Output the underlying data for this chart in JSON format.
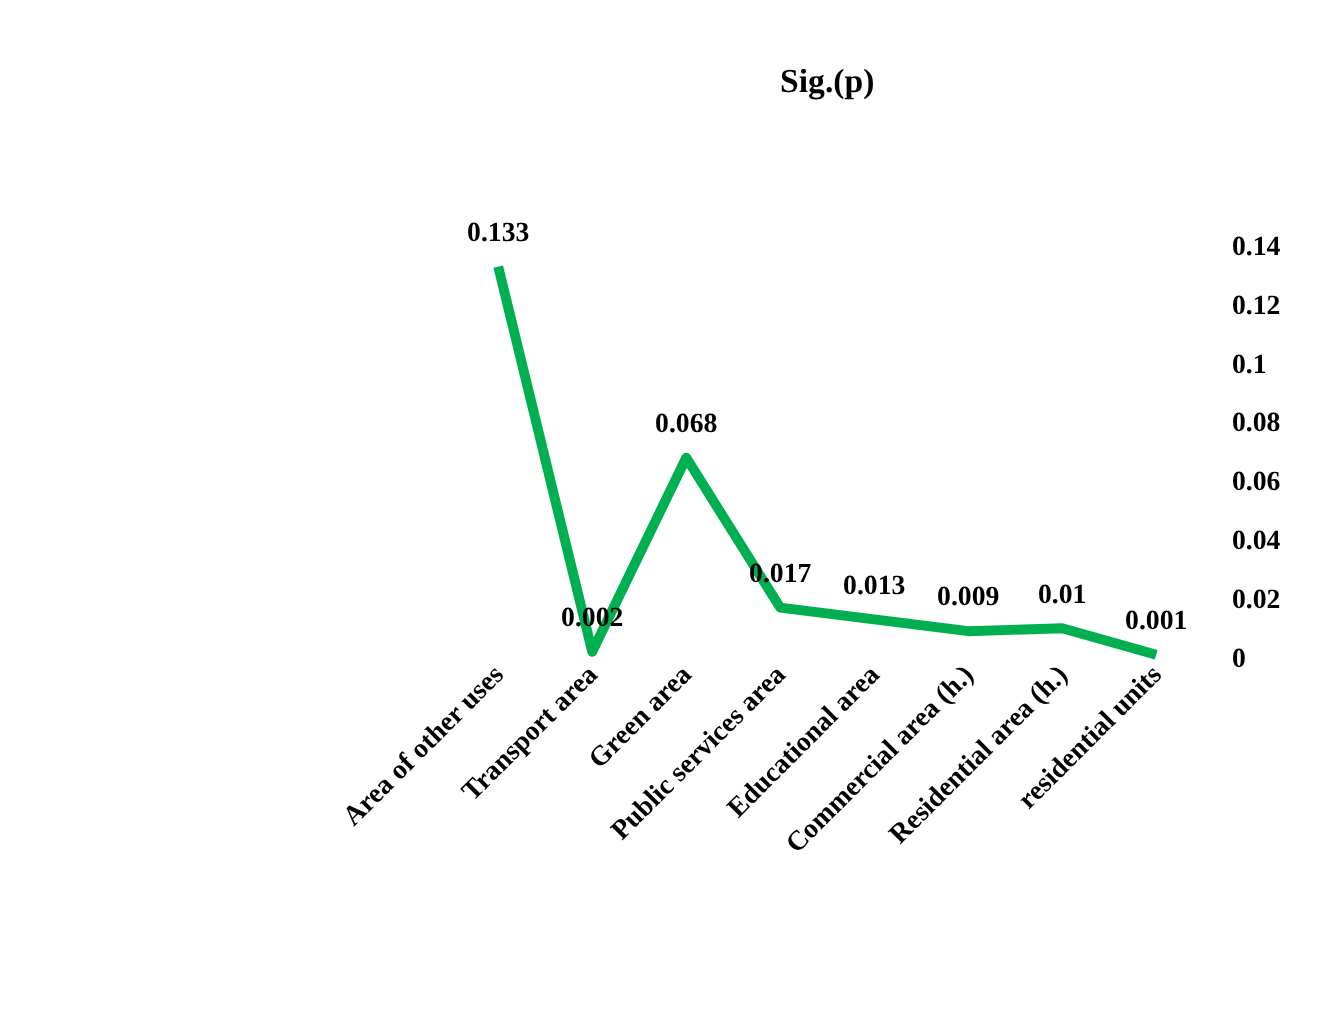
{
  "chart_data": {
    "type": "line",
    "title": "Sig.(p)",
    "categories": [
      "Area of other uses",
      "Transport area",
      "Green area",
      "Public services area",
      "Educational area",
      "Commercial area (h.)",
      "Residential area (h.)",
      "residential units"
    ],
    "series": [
      {
        "color": "#00b050",
        "values": [
          0.133,
          0.002,
          0.068,
          0.017,
          0.013,
          0.009,
          0.01,
          0.001
        ]
      }
    ],
    "ylim": [
      0,
      0.14
    ],
    "yticks": [
      0,
      0.02,
      0.04,
      0.06,
      0.08,
      0.1,
      0.12,
      0.14
    ],
    "data_labels": true,
    "grid": false,
    "marker": "none",
    "line_style": "solid"
  }
}
